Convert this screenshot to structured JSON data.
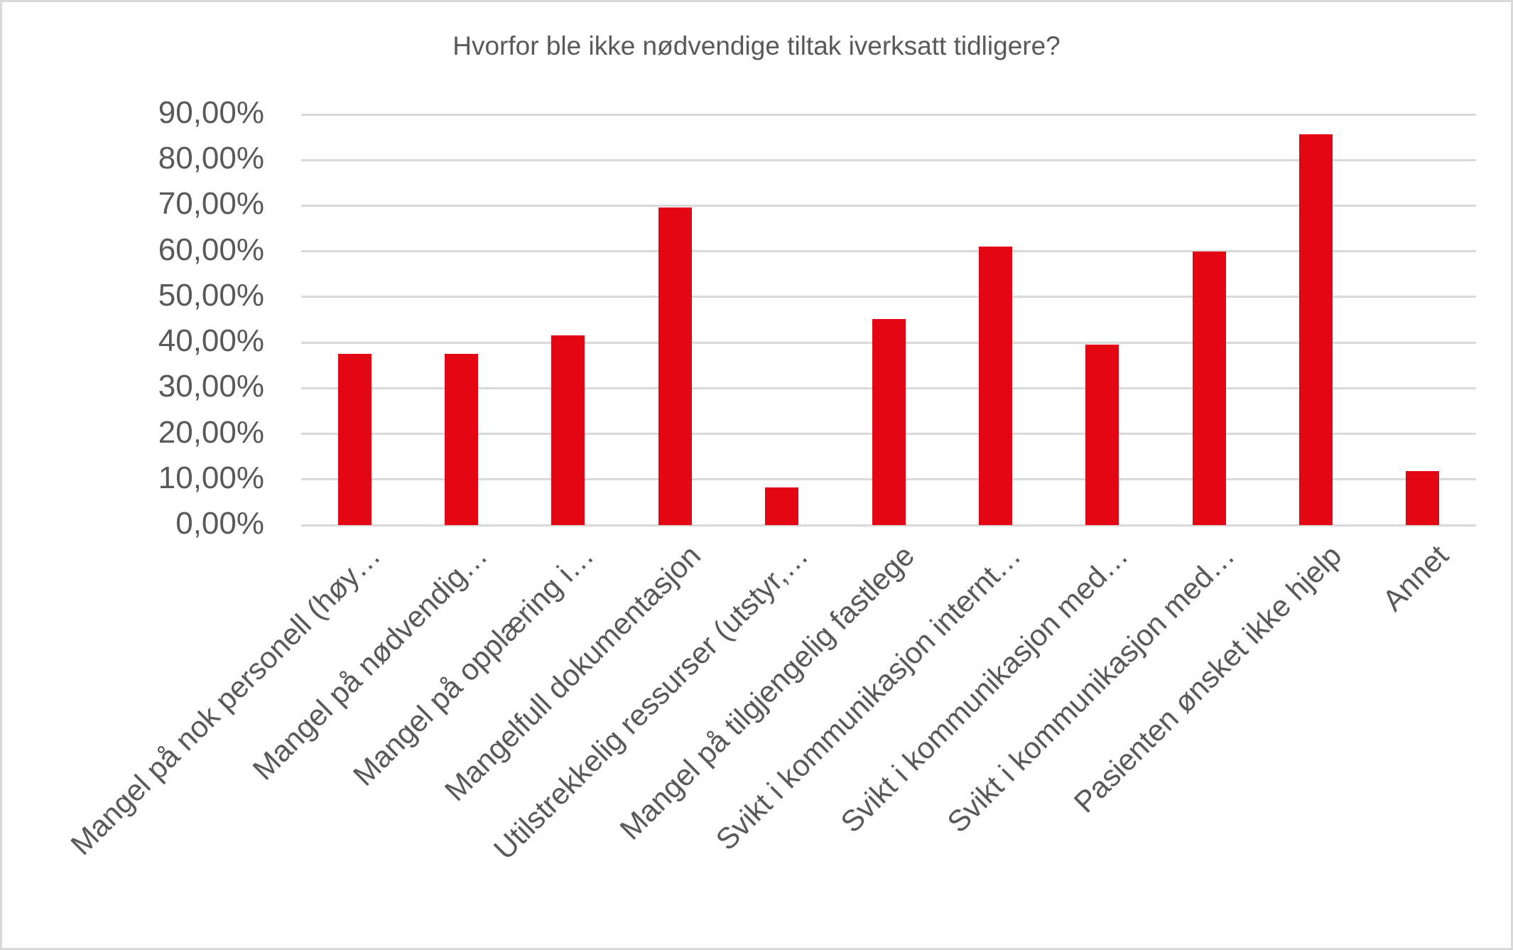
{
  "chart_data": {
    "type": "bar",
    "title": "Hvorfor ble ikke nødvendige tiltak iverksatt tidligere?",
    "xlabel": "",
    "ylabel": "",
    "ylim": [
      0,
      90
    ],
    "grid": true,
    "legend": "none",
    "bar_color": "#e30613",
    "yticks": [
      "0,00%",
      "10,00%",
      "20,00%",
      "30,00%",
      "40,00%",
      "50,00%",
      "60,00%",
      "70,00%",
      "80,00%",
      "90,00%"
    ],
    "categories": [
      "Mangel på nok personell (høy…",
      "Mangel på nødvendig…",
      "Mangel på opplæring i…",
      "Mangelfull dokumentasjon",
      "Utilstrekkelig ressurser (utstyr,…",
      "Mangel på tilgjengelig fastlege",
      "Svikt i kommunikasjon internt…",
      "Svikt i kommunikasjon med…",
      "Svikt i kommunikasjon med…",
      "Pasienten ønsket ikke hjelp",
      "Annet"
    ],
    "values": [
      37.6,
      37.6,
      41.5,
      69.6,
      8.3,
      45.1,
      61.0,
      39.6,
      60.0,
      85.7,
      11.9
    ]
  }
}
